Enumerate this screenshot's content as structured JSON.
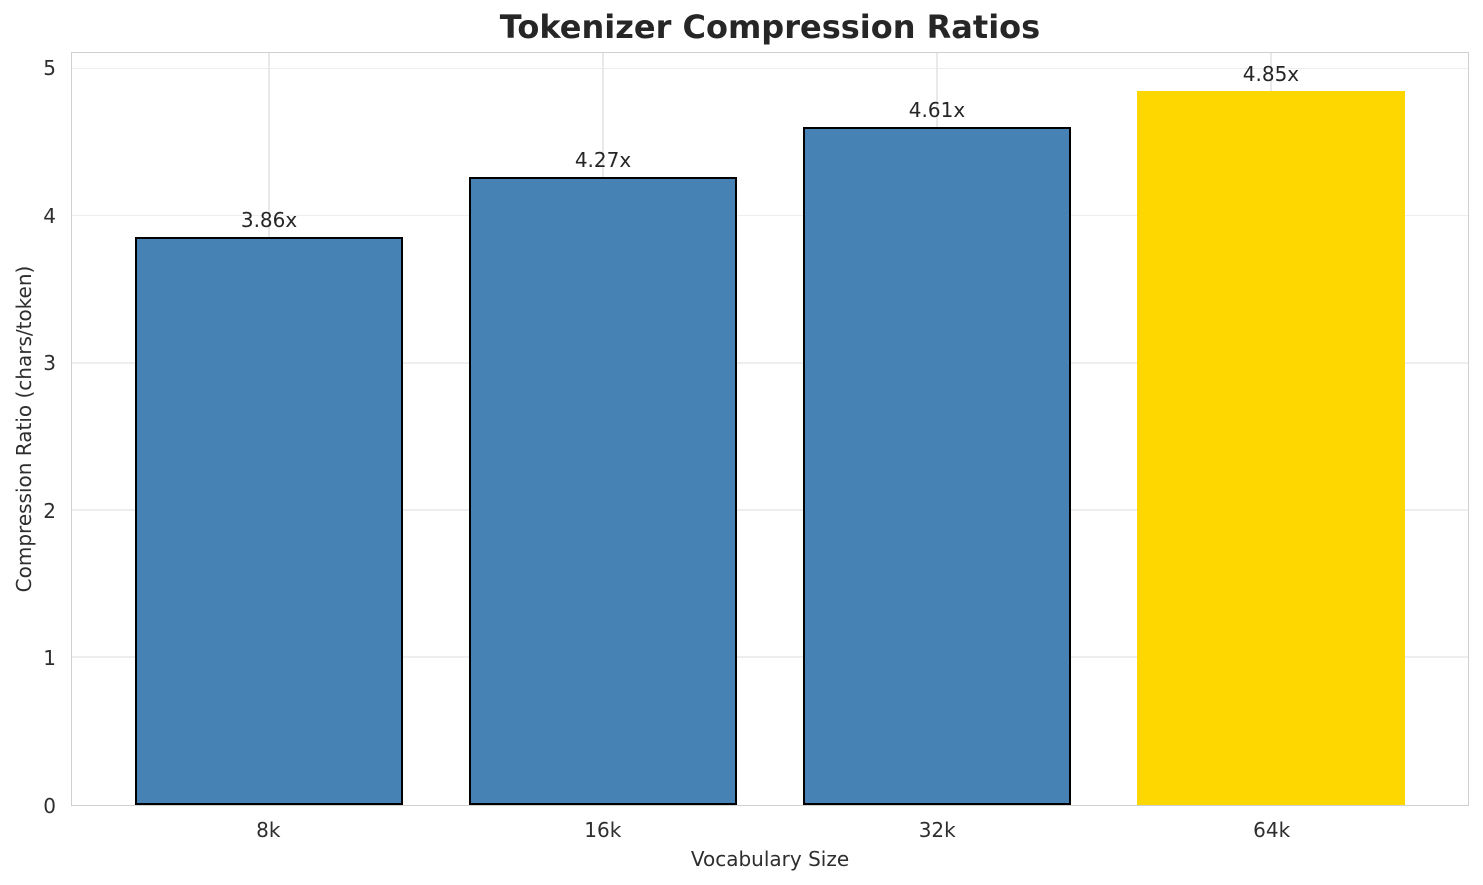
{
  "chart_data": {
    "type": "bar",
    "title": "Tokenizer Compression Ratios",
    "xlabel": "Vocabulary Size",
    "ylabel": "Compression Ratio (chars/token)",
    "categories": [
      "8k",
      "16k",
      "32k",
      "64k"
    ],
    "values": [
      3.86,
      4.27,
      4.61,
      4.85
    ],
    "value_labels": [
      "3.86x",
      "4.27x",
      "4.61x",
      "4.85x"
    ],
    "yticks": [
      0,
      1,
      2,
      3,
      4,
      5
    ],
    "ylim": [
      0,
      5.11
    ],
    "bar_width_fraction": 0.8,
    "x_edge_margin_units": 0.59,
    "grid": true,
    "legend": "none",
    "bar_colors": [
      "#4682B4",
      "#4682B4",
      "#4682B4",
      "#FFD700"
    ],
    "bar_edge_colors": [
      "#000000",
      "#000000",
      "#000000",
      "none"
    ]
  },
  "colors": {
    "background": "#ffffff",
    "bar_blue": "#4682B4",
    "bar_highlight_gold": "#FFD700",
    "bar_edge": "#000000",
    "gridline": "#eeeeee",
    "spine": "#d0d0d0",
    "title_text": "#262626",
    "tick_text": "#2e2e2e"
  }
}
